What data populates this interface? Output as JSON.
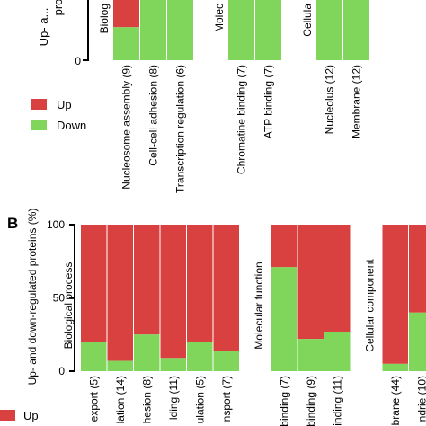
{
  "panel_b_label": "B",
  "legend": {
    "up_label": "Up",
    "down_label": "Down",
    "up_color": "#d94141",
    "down_color": "#7fd65a"
  },
  "chart_data": [
    {
      "id": "panel-a",
      "type": "bar",
      "stacked": true,
      "ylabel": "Up- and down-regulated proteins (%)",
      "ylabel_visible": "Up- a...",
      "ylim": [
        0,
        100
      ],
      "y_ticks_visible": [
        "0"
      ],
      "groups": [
        {
          "name": "Biological process",
          "visible_label": "Biolog",
          "categories": [
            "Nucleosome assembly (9)",
            "Cell-cell adhesion (8)",
            "Transcription regulation (6)"
          ]
        },
        {
          "name": "Molecular function",
          "visible_label": "Molec",
          "categories": [
            "Chromatine binding (7)",
            "ATP binding (7)"
          ]
        },
        {
          "name": "Cellular component",
          "visible_label": "Cellula",
          "categories": [
            "Nucleolus (12)",
            "Membrane (12)"
          ]
        }
      ],
      "categories": [
        "Nucleosome assembly (9)",
        "Cell-cell adhesion (8)",
        "Transcription regulation (6)",
        "Chromatine binding (7)",
        "ATP binding (7)",
        "Nucleolus (12)",
        "Membrane (12)"
      ],
      "series": [
        {
          "name": "Up",
          "values": [
            75,
            0,
            17,
            29,
            14,
            40,
            0
          ]
        },
        {
          "name": "Down",
          "values": [
            25,
            100,
            83,
            71,
            86,
            60,
            100
          ]
        }
      ]
    },
    {
      "id": "panel-b",
      "type": "bar",
      "stacked": true,
      "ylabel": "Up- and down-regulated proteins (%)",
      "ylim": [
        0,
        100
      ],
      "y_ticks": [
        0,
        50,
        100
      ],
      "groups": [
        {
          "name": "Biological process",
          "categories": [
            "export (5)",
            "lation (14)",
            "hesion (8)",
            "lding (11)",
            "ulation (5)",
            "nsport (7)"
          ]
        },
        {
          "name": "Molecular function",
          "categories": [
            "binding (7)",
            "binding (9)",
            "binding (11)"
          ]
        },
        {
          "name": "Cellular component",
          "categories": [
            "brane (44)",
            "ndrie (10)"
          ]
        }
      ],
      "categories": [
        "export (5)",
        "lation (14)",
        "hesion (8)",
        "lding (11)",
        "ulation (5)",
        "nsport (7)",
        "binding (7)",
        "binding (9)",
        "binding (11)",
        "brane (44)",
        "ndrie (10)"
      ],
      "series": [
        {
          "name": "Up",
          "values": [
            80,
            93,
            75,
            91,
            80,
            86,
            29,
            78,
            73,
            95,
            60
          ]
        },
        {
          "name": "Down",
          "values": [
            20,
            7,
            25,
            9,
            20,
            14,
            71,
            22,
            27,
            5,
            40
          ]
        }
      ]
    }
  ]
}
